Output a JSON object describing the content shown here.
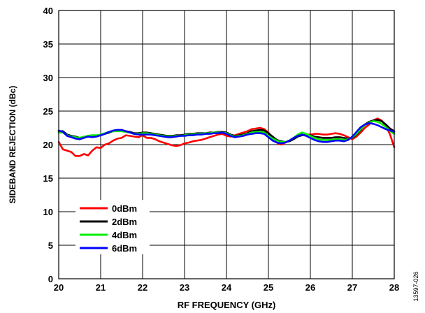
{
  "chart_data": {
    "type": "line",
    "xlabel": "RF FREQUENCY (GHz)",
    "ylabel": "SIDEBAND REJECTION (dBc)",
    "xlim": [
      20,
      28
    ],
    "ylim": [
      0,
      40
    ],
    "xticks": [
      20,
      21,
      22,
      23,
      24,
      25,
      26,
      27,
      28
    ],
    "yticks": [
      0,
      5,
      10,
      15,
      20,
      25,
      30,
      35,
      40
    ],
    "grid": true,
    "legend_position": "bottom-left",
    "figure_id": "13597-026",
    "series": [
      {
        "name": "0dBm",
        "color": "#ff0000",
        "x": [
          20.0,
          20.1,
          20.2,
          20.3,
          20.4,
          20.5,
          20.6,
          20.7,
          20.8,
          20.9,
          21.0,
          21.1,
          21.2,
          21.3,
          21.4,
          21.5,
          21.6,
          21.7,
          21.8,
          21.9,
          22.0,
          22.1,
          22.2,
          22.3,
          22.4,
          22.5,
          22.6,
          22.7,
          22.8,
          22.9,
          23.0,
          23.1,
          23.2,
          23.3,
          23.4,
          23.5,
          23.6,
          23.7,
          23.8,
          23.9,
          24.0,
          24.1,
          24.2,
          24.3,
          24.4,
          24.5,
          24.6,
          24.7,
          24.8,
          24.9,
          25.0,
          25.1,
          25.2,
          25.3,
          25.4,
          25.5,
          25.6,
          25.7,
          25.8,
          25.9,
          26.0,
          26.1,
          26.2,
          26.3,
          26.4,
          26.5,
          26.6,
          26.7,
          26.8,
          26.9,
          27.0,
          27.1,
          27.2,
          27.3,
          27.4,
          27.5,
          27.6,
          27.7,
          27.8,
          27.9,
          28.0
        ],
        "values": [
          20.4,
          19.3,
          19.1,
          18.9,
          18.3,
          18.3,
          18.6,
          18.4,
          19.1,
          19.6,
          19.5,
          20.0,
          20.2,
          20.6,
          20.9,
          21.0,
          21.4,
          21.3,
          21.2,
          21.1,
          21.4,
          21.0,
          21.0,
          20.8,
          20.5,
          20.3,
          20.1,
          19.9,
          19.8,
          19.9,
          20.2,
          20.3,
          20.5,
          20.6,
          20.7,
          20.9,
          21.1,
          21.3,
          21.5,
          21.6,
          21.3,
          21.2,
          21.4,
          21.6,
          21.8,
          22.0,
          22.3,
          22.4,
          22.5,
          22.3,
          21.8,
          21.0,
          20.3,
          20.0,
          20.3,
          20.6,
          21.0,
          21.3,
          21.4,
          21.5,
          21.5,
          21.6,
          21.6,
          21.5,
          21.5,
          21.6,
          21.7,
          21.6,
          21.4,
          21.1,
          20.8,
          21.2,
          21.8,
          22.5,
          23.0,
          23.6,
          23.9,
          23.6,
          22.8,
          21.5,
          19.6
        ]
      },
      {
        "name": "2dBm",
        "color": "#000000",
        "x": [
          20.0,
          20.1,
          20.2,
          20.3,
          20.4,
          20.5,
          20.6,
          20.7,
          20.8,
          20.9,
          21.0,
          21.1,
          21.2,
          21.3,
          21.4,
          21.5,
          21.6,
          21.7,
          21.8,
          21.9,
          22.0,
          22.1,
          22.2,
          22.3,
          22.4,
          22.5,
          22.6,
          22.7,
          22.8,
          22.9,
          23.0,
          23.1,
          23.2,
          23.3,
          23.4,
          23.5,
          23.6,
          23.7,
          23.8,
          23.9,
          24.0,
          24.1,
          24.2,
          24.3,
          24.4,
          24.5,
          24.6,
          24.7,
          24.8,
          24.9,
          25.0,
          25.1,
          25.2,
          25.3,
          25.4,
          25.5,
          25.6,
          25.7,
          25.8,
          25.9,
          26.0,
          26.1,
          26.2,
          26.3,
          26.4,
          26.5,
          26.6,
          26.7,
          26.8,
          26.9,
          27.0,
          27.1,
          27.2,
          27.3,
          27.4,
          27.5,
          27.6,
          27.7,
          27.8,
          27.9,
          28.0
        ],
        "values": [
          22.0,
          22.0,
          21.5,
          21.3,
          21.2,
          21.0,
          21.1,
          21.3,
          21.4,
          21.3,
          21.4,
          21.6,
          21.8,
          22.0,
          22.1,
          22.1,
          22.0,
          21.9,
          21.7,
          21.7,
          21.8,
          21.8,
          21.7,
          21.6,
          21.5,
          21.4,
          21.3,
          21.3,
          21.4,
          21.4,
          21.5,
          21.6,
          21.6,
          21.7,
          21.7,
          21.7,
          21.8,
          21.8,
          21.9,
          21.9,
          21.8,
          21.5,
          21.3,
          21.4,
          21.5,
          21.7,
          22.0,
          22.1,
          22.2,
          22.1,
          21.7,
          21.2,
          20.7,
          20.5,
          20.4,
          20.5,
          20.8,
          21.2,
          21.4,
          21.5,
          21.4,
          21.2,
          21.1,
          21.0,
          21.0,
          21.0,
          21.1,
          21.1,
          21.0,
          20.9,
          21.0,
          21.5,
          22.2,
          23.0,
          23.4,
          23.6,
          23.7,
          23.5,
          23.0,
          22.4,
          22.0
        ]
      },
      {
        "name": "4dBm",
        "color": "#00ee00",
        "x": [
          20.0,
          20.1,
          20.2,
          20.3,
          20.4,
          20.5,
          20.6,
          20.7,
          20.8,
          20.9,
          21.0,
          21.1,
          21.2,
          21.3,
          21.4,
          21.5,
          21.6,
          21.7,
          21.8,
          21.9,
          22.0,
          22.1,
          22.2,
          22.3,
          22.4,
          22.5,
          22.6,
          22.7,
          22.8,
          22.9,
          23.0,
          23.1,
          23.2,
          23.3,
          23.4,
          23.5,
          23.6,
          23.7,
          23.8,
          23.9,
          24.0,
          24.1,
          24.2,
          24.3,
          24.4,
          24.5,
          24.6,
          24.7,
          24.8,
          24.9,
          25.0,
          25.1,
          25.2,
          25.3,
          25.4,
          25.5,
          25.6,
          25.7,
          25.8,
          25.9,
          26.0,
          26.1,
          26.2,
          26.3,
          26.4,
          26.5,
          26.6,
          26.7,
          26.8,
          26.9,
          27.0,
          27.1,
          27.2,
          27.3,
          27.4,
          27.5,
          27.6,
          27.7,
          27.8,
          27.9,
          28.0
        ],
        "values": [
          21.8,
          21.8,
          21.4,
          21.2,
          21.1,
          21.0,
          21.2,
          21.3,
          21.4,
          21.4,
          21.5,
          21.7,
          21.9,
          22.0,
          22.0,
          22.0,
          21.9,
          21.8,
          21.6,
          21.6,
          21.7,
          21.7,
          21.6,
          21.5,
          21.4,
          21.3,
          21.2,
          21.2,
          21.3,
          21.3,
          21.4,
          21.5,
          21.5,
          21.6,
          21.6,
          21.7,
          21.7,
          21.8,
          21.8,
          21.8,
          21.7,
          21.4,
          21.2,
          21.3,
          21.4,
          21.6,
          21.8,
          21.9,
          21.9,
          21.8,
          21.3,
          20.9,
          20.6,
          20.4,
          20.4,
          20.6,
          21.0,
          21.5,
          21.8,
          21.6,
          21.3,
          21.0,
          20.8,
          20.7,
          20.7,
          20.7,
          20.8,
          20.8,
          20.7,
          20.8,
          21.1,
          21.6,
          22.3,
          22.9,
          23.3,
          23.5,
          23.4,
          23.1,
          22.6,
          22.0,
          21.6
        ]
      },
      {
        "name": "6dBm",
        "color": "#0000ff",
        "x": [
          20.0,
          20.1,
          20.2,
          20.3,
          20.4,
          20.5,
          20.6,
          20.7,
          20.8,
          20.9,
          21.0,
          21.1,
          21.2,
          21.3,
          21.4,
          21.5,
          21.6,
          21.7,
          21.8,
          21.9,
          22.0,
          22.1,
          22.2,
          22.3,
          22.4,
          22.5,
          22.6,
          22.7,
          22.8,
          22.9,
          23.0,
          23.1,
          23.2,
          23.3,
          23.4,
          23.5,
          23.6,
          23.7,
          23.8,
          23.9,
          24.0,
          24.1,
          24.2,
          24.3,
          24.4,
          24.5,
          24.6,
          24.7,
          24.8,
          24.9,
          25.0,
          25.1,
          25.2,
          25.3,
          25.4,
          25.5,
          25.6,
          25.7,
          25.8,
          25.9,
          26.0,
          26.1,
          26.2,
          26.3,
          26.4,
          26.5,
          26.6,
          26.7,
          26.8,
          26.9,
          27.0,
          27.1,
          27.2,
          27.3,
          27.4,
          27.5,
          27.6,
          27.7,
          27.8,
          27.9,
          28.0
        ],
        "values": [
          22.1,
          21.9,
          21.3,
          21.1,
          20.9,
          20.8,
          21.0,
          21.2,
          21.1,
          21.2,
          21.4,
          21.6,
          21.9,
          22.1,
          22.2,
          22.2,
          22.0,
          21.8,
          21.6,
          21.5,
          21.5,
          21.5,
          21.5,
          21.4,
          21.3,
          21.2,
          21.1,
          21.1,
          21.2,
          21.3,
          21.3,
          21.4,
          21.4,
          21.5,
          21.5,
          21.6,
          21.6,
          21.7,
          21.7,
          21.8,
          21.6,
          21.3,
          21.1,
          21.2,
          21.3,
          21.5,
          21.6,
          21.7,
          21.7,
          21.6,
          21.1,
          20.6,
          20.3,
          20.2,
          20.3,
          20.6,
          21.0,
          21.3,
          21.5,
          21.3,
          21.0,
          20.7,
          20.5,
          20.4,
          20.4,
          20.5,
          20.6,
          20.6,
          20.5,
          20.7,
          21.2,
          21.9,
          22.6,
          23.0,
          23.2,
          23.1,
          22.9,
          22.6,
          22.3,
          22.1,
          21.9
        ]
      }
    ]
  }
}
